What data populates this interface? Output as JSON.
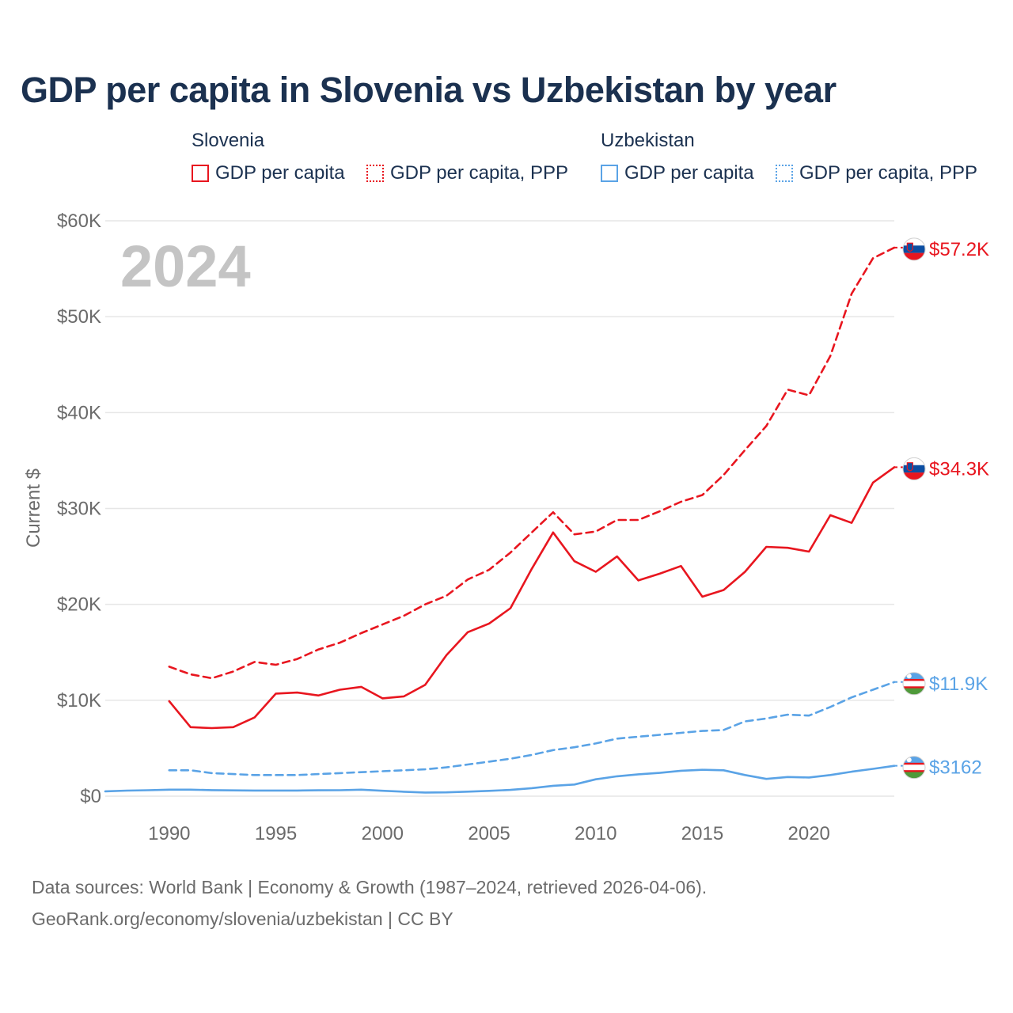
{
  "title": "GDP per capita in Slovenia vs Uzbekistan by year",
  "legend": {
    "groups": [
      {
        "name": "Slovenia",
        "items": [
          "GDP per capita",
          "GDP per capita, PPP"
        ]
      },
      {
        "name": "Uzbekistan",
        "items": [
          "GDP per capita",
          "GDP per capita, PPP"
        ]
      }
    ]
  },
  "colors": {
    "slovenia": "#e8161f",
    "uzbekistan": "#5aa3e6",
    "title": "#1b3150",
    "grid": "#e6e6e6",
    "axis": "#6b6b6b",
    "year_watermark": "#c4c4c4"
  },
  "year_label": "2024",
  "source": {
    "line1": "Data sources: World Bank | Economy & Growth (1987–2024, retrieved 2026-04-06).",
    "line2": "GeoRank.org/economy/slovenia/uzbekistan | CC BY"
  },
  "chart_data": {
    "type": "line",
    "title": "GDP per capita in Slovenia vs Uzbekistan by year",
    "xlabel": "",
    "ylabel": "Current $",
    "xlim": [
      1987,
      2024
    ],
    "ylim": [
      0,
      60000
    ],
    "x_ticks": [
      1990,
      1995,
      2000,
      2005,
      2010,
      2015,
      2020
    ],
    "y_ticks": [
      0,
      10000,
      20000,
      30000,
      40000,
      50000,
      60000
    ],
    "y_tick_labels": [
      "$0",
      "$10K",
      "$20K",
      "$30K",
      "$40K",
      "$50K",
      "$60K"
    ],
    "grid": true,
    "series": [
      {
        "name": "Slovenia — GDP per capita, PPP",
        "country": "slovenia",
        "style": "dashed",
        "end_label": "$57.2K",
        "x": [
          1990,
          1991,
          1992,
          1993,
          1994,
          1995,
          1996,
          1997,
          1998,
          1999,
          2000,
          2001,
          2002,
          2003,
          2004,
          2005,
          2006,
          2007,
          2008,
          2009,
          2010,
          2011,
          2012,
          2013,
          2014,
          2015,
          2016,
          2017,
          2018,
          2019,
          2020,
          2021,
          2022,
          2023,
          2024
        ],
        "y": [
          13500,
          12700,
          12300,
          13000,
          14000,
          13700,
          14300,
          15300,
          16000,
          17000,
          17900,
          18800,
          20000,
          20900,
          22600,
          23600,
          25400,
          27500,
          29600,
          27300,
          27600,
          28800,
          28800,
          29700,
          30700,
          31400,
          33500,
          36100,
          38600,
          42400,
          41800,
          45900,
          52400,
          56100,
          57200
        ]
      },
      {
        "name": "Slovenia — GDP per capita",
        "country": "slovenia",
        "style": "solid",
        "end_label": "$34.3K",
        "x": [
          1990,
          1991,
          1992,
          1993,
          1994,
          1995,
          1996,
          1997,
          1998,
          1999,
          2000,
          2001,
          2002,
          2003,
          2004,
          2005,
          2006,
          2007,
          2008,
          2009,
          2010,
          2011,
          2012,
          2013,
          2014,
          2015,
          2016,
          2017,
          2018,
          2019,
          2020,
          2021,
          2022,
          2023,
          2024
        ],
        "y": [
          9900,
          7200,
          7100,
          7200,
          8200,
          10700,
          10800,
          10500,
          11100,
          11400,
          10200,
          10400,
          11600,
          14700,
          17100,
          18000,
          19600,
          23700,
          27500,
          24500,
          23400,
          25000,
          22500,
          23200,
          24000,
          20800,
          21500,
          23400,
          26000,
          25900,
          25500,
          29300,
          28500,
          32700,
          34300
        ]
      },
      {
        "name": "Uzbekistan — GDP per capita, PPP",
        "country": "uzbekistan",
        "style": "dashed",
        "end_label": "$11.9K",
        "x": [
          1990,
          1991,
          1992,
          1993,
          1994,
          1995,
          1996,
          1997,
          1998,
          1999,
          2000,
          2001,
          2002,
          2003,
          2004,
          2005,
          2006,
          2007,
          2008,
          2009,
          2010,
          2011,
          2012,
          2013,
          2014,
          2015,
          2016,
          2017,
          2018,
          2019,
          2020,
          2021,
          2022,
          2023,
          2024
        ],
        "y": [
          2700,
          2700,
          2400,
          2300,
          2200,
          2200,
          2200,
          2300,
          2400,
          2500,
          2600,
          2700,
          2800,
          3000,
          3300,
          3600,
          3900,
          4300,
          4800,
          5100,
          5500,
          6000,
          6200,
          6400,
          6600,
          6800,
          6900,
          7800,
          8100,
          8500,
          8400,
          9300,
          10300,
          11100,
          11900
        ]
      },
      {
        "name": "Uzbekistan — GDP per capita",
        "country": "uzbekistan",
        "style": "solid",
        "end_label": "$3162",
        "x": [
          1987,
          1988,
          1989,
          1990,
          1991,
          1992,
          1993,
          1994,
          1995,
          1996,
          1997,
          1998,
          1999,
          2000,
          2001,
          2002,
          2003,
          2004,
          2005,
          2006,
          2007,
          2008,
          2009,
          2010,
          2011,
          2012,
          2013,
          2014,
          2015,
          2016,
          2017,
          2018,
          2019,
          2020,
          2021,
          2022,
          2023,
          2024
        ],
        "y": [
          500,
          580,
          620,
          680,
          680,
          630,
          600,
          590,
          590,
          590,
          610,
          620,
          680,
          560,
          460,
          380,
          400,
          470,
          550,
          650,
          830,
          1080,
          1210,
          1760,
          2070,
          2280,
          2430,
          2650,
          2750,
          2700,
          2200,
          1800,
          2000,
          1950,
          2200,
          2550,
          2850,
          3162
        ]
      }
    ]
  }
}
